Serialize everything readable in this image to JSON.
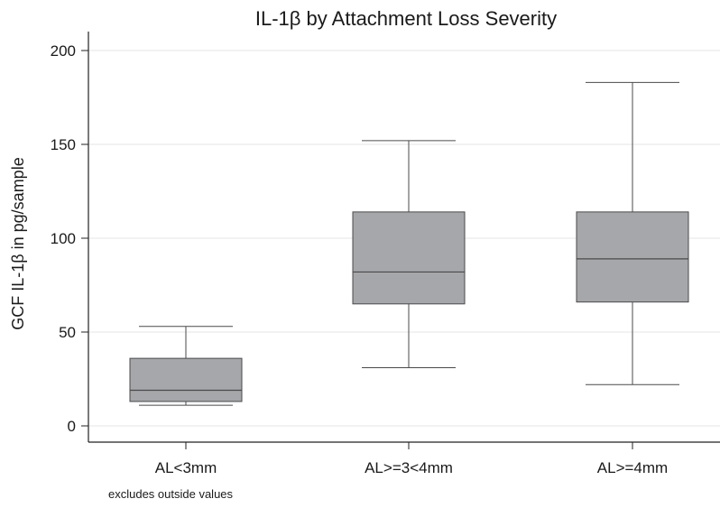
{
  "chart_data": {
    "type": "box",
    "title": "IL-1β by Attachment Loss Severity",
    "ylabel": "GCF IL-1β in pg/sample",
    "xlabel": "",
    "ylim": [
      0,
      210
    ],
    "yticks": [
      0,
      50,
      100,
      150,
      200
    ],
    "grid": true,
    "categories": [
      "AL<3mm",
      "AL>=3<4mm",
      "AL>=4mm"
    ],
    "boxes": [
      {
        "category": "AL<3mm",
        "whisker_low": 11,
        "q1": 13,
        "median": 19,
        "q3": 36,
        "whisker_high": 53
      },
      {
        "category": "AL>=3<4mm",
        "whisker_low": 31,
        "q1": 65,
        "median": 82,
        "q3": 114,
        "whisker_high": 152
      },
      {
        "category": "AL>=4mm",
        "whisker_low": 22,
        "q1": 66,
        "median": 89,
        "q3": 114,
        "whisker_high": 183
      }
    ],
    "note": "excludes outside values",
    "colors": {
      "box_fill": "#a6a7ab",
      "box_stroke": "#4a4a4a",
      "grid": "#e6e6e6",
      "axis": "#222222"
    }
  }
}
